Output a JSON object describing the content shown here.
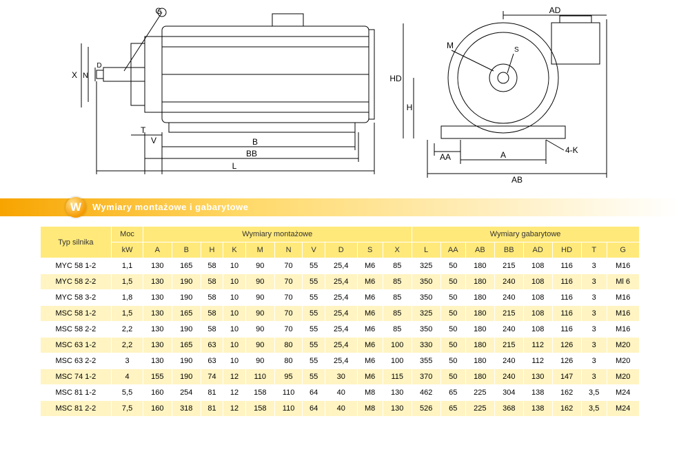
{
  "diagram": {
    "labels": {
      "G": "G",
      "X": "X",
      "N": "N",
      "D": "D",
      "T": "T",
      "V": "V",
      "B": "B",
      "BB": "BB",
      "L": "L",
      "M": "M",
      "HD": "HD",
      "H": "H",
      "AA": "AA",
      "A": "A",
      "K4": "4-K",
      "AB": "AB",
      "AD": "AD",
      "S": "S"
    },
    "stroke": "#000000",
    "fontsize": 12
  },
  "header": {
    "badge": "W",
    "title": "Wymiary montażowe i gabarytowe"
  },
  "table": {
    "col_typ": "Typ silnika",
    "col_moc": "Moc",
    "col_moc_unit": "kW",
    "group_mont": "Wymiary montażowe",
    "group_gab": "Wymiary gabarytowe",
    "cols_mont": [
      "A",
      "B",
      "H",
      "K",
      "M",
      "N",
      "V",
      "D",
      "S",
      "X"
    ],
    "cols_gab": [
      "L",
      "AA",
      "AB",
      "BB",
      "AD",
      "HD",
      "T",
      "G"
    ],
    "rows": [
      {
        "typ": "MYC 58 1-2",
        "moc": "1,1",
        "v": [
          "130",
          "165",
          "58",
          "10",
          "90",
          "70",
          "55",
          "25,4",
          "M6",
          "85",
          "325",
          "50",
          "180",
          "215",
          "108",
          "116",
          "3",
          "M16"
        ]
      },
      {
        "typ": "MYC 58 2-2",
        "moc": "1,5",
        "v": [
          "130",
          "190",
          "58",
          "10",
          "90",
          "70",
          "55",
          "25,4",
          "M6",
          "85",
          "350",
          "50",
          "180",
          "240",
          "108",
          "116",
          "3",
          "Ml 6"
        ]
      },
      {
        "typ": "MYC 58 3-2",
        "moc": "1,8",
        "v": [
          "130",
          "190",
          "58",
          "10",
          "90",
          "70",
          "55",
          "25,4",
          "M6",
          "85",
          "350",
          "50",
          "180",
          "240",
          "108",
          "116",
          "3",
          "M16"
        ]
      },
      {
        "typ": "MSC 58 1-2",
        "moc": "1,5",
        "v": [
          "130",
          "165",
          "58",
          "10",
          "90",
          "70",
          "55",
          "25,4",
          "M6",
          "85",
          "325",
          "50",
          "180",
          "215",
          "108",
          "116",
          "3",
          "M16"
        ]
      },
      {
        "typ": "MSC 58 2-2",
        "moc": "2,2",
        "v": [
          "130",
          "190",
          "58",
          "10",
          "90",
          "70",
          "55",
          "25,4",
          "M6",
          "85",
          "350",
          "50",
          "180",
          "240",
          "108",
          "116",
          "3",
          "M16"
        ]
      },
      {
        "typ": "MSC 63 1-2",
        "moc": "2,2",
        "v": [
          "130",
          "165",
          "63",
          "10",
          "90",
          "80",
          "55",
          "25,4",
          "M6",
          "100",
          "330",
          "50",
          "180",
          "215",
          "112",
          "126",
          "3",
          "M20"
        ]
      },
      {
        "typ": "MSC 63 2-2",
        "moc": "3",
        "v": [
          "130",
          "190",
          "63",
          "10",
          "90",
          "80",
          "55",
          "25,4",
          "M6",
          "100",
          "355",
          "50",
          "180",
          "240",
          "112",
          "126",
          "3",
          "M20"
        ]
      },
      {
        "typ": "MSC 74 1-2",
        "moc": "4",
        "v": [
          "155",
          "190",
          "74",
          "12",
          "110",
          "95",
          "55",
          "30",
          "M6",
          "115",
          "370",
          "50",
          "180",
          "240",
          "130",
          "147",
          "3",
          "M20"
        ]
      },
      {
        "typ": "MSC 81 1-2",
        "moc": "5,5",
        "v": [
          "160",
          "254",
          "81",
          "12",
          "158",
          "110",
          "64",
          "40",
          "M8",
          "130",
          "462",
          "65",
          "225",
          "304",
          "138",
          "162",
          "3,5",
          "M24"
        ]
      },
      {
        "typ": "MSC 81 2-2",
        "moc": "7,5",
        "v": [
          "160",
          "318",
          "81",
          "12",
          "158",
          "110",
          "64",
          "40",
          "M8",
          "130",
          "526",
          "65",
          "225",
          "368",
          "138",
          "162",
          "3,5",
          "M24"
        ]
      }
    ],
    "header_bg": "#ffe97a",
    "row_even_bg": "#fff4c2",
    "row_odd_bg": "#ffffff",
    "fontsize": 11
  }
}
